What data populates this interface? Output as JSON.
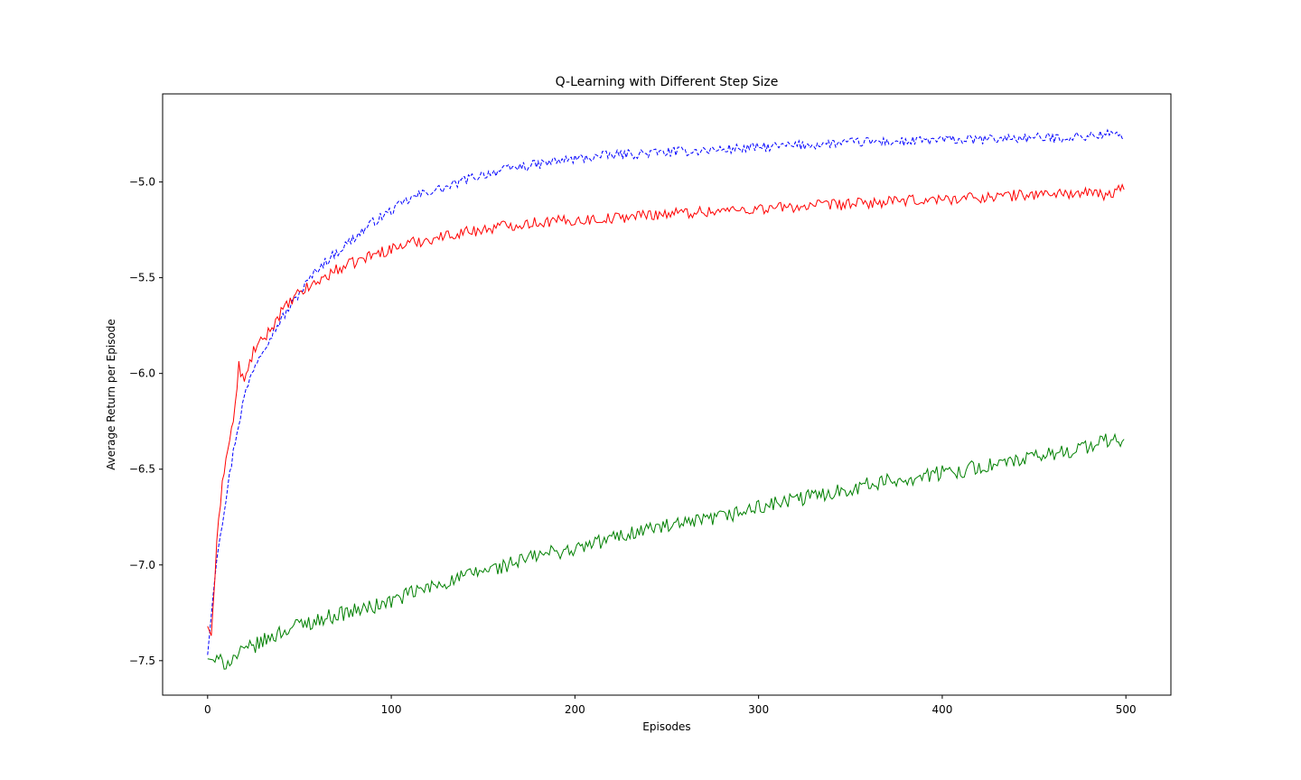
{
  "chart_data": {
    "type": "line",
    "title": "Q-Learning with Different Step Size",
    "xlabel": "Episodes",
    "ylabel": "Average Return per Episode",
    "xlim": [
      -24.5,
      524.5
    ],
    "ylim": [
      -7.68,
      -4.54
    ],
    "xticks": [
      0,
      100,
      200,
      300,
      400,
      500
    ],
    "xtick_labels": [
      "0",
      "100",
      "200",
      "300",
      "400",
      "500"
    ],
    "yticks": [
      -7.5,
      -7.0,
      -6.5,
      -6.0,
      -5.5,
      -5.0
    ],
    "ytick_labels": [
      "−7.5",
      "−7.0",
      "−6.5",
      "−6.0",
      "−5.5",
      "−5.0"
    ],
    "grid": false,
    "legend": "none",
    "series": [
      {
        "color": "#0000ff",
        "dash": "dashed",
        "x": [
          0,
          5,
          10,
          15,
          20,
          25,
          30,
          40,
          50,
          60,
          70,
          80,
          90,
          100,
          110,
          120,
          130,
          140,
          150,
          160,
          170,
          180,
          190,
          200,
          220,
          240,
          260,
          280,
          300,
          320,
          340,
          360,
          380,
          400,
          420,
          440,
          460,
          480,
          490,
          499
        ],
        "y": [
          -7.47,
          -6.95,
          -6.65,
          -6.35,
          -6.12,
          -5.97,
          -5.87,
          -5.72,
          -5.58,
          -5.45,
          -5.37,
          -5.29,
          -5.21,
          -5.15,
          -5.09,
          -5.05,
          -5.03,
          -4.99,
          -4.96,
          -4.94,
          -4.92,
          -4.91,
          -4.89,
          -4.88,
          -4.86,
          -4.85,
          -4.84,
          -4.83,
          -4.82,
          -4.81,
          -4.8,
          -4.79,
          -4.79,
          -4.78,
          -4.78,
          -4.77,
          -4.77,
          -4.76,
          -4.75,
          -4.76
        ]
      },
      {
        "color": "#ff0000",
        "dash": "solid",
        "x": [
          0,
          2,
          5,
          8,
          12,
          15,
          17,
          20,
          25,
          30,
          40,
          50,
          60,
          70,
          80,
          90,
          100,
          110,
          120,
          130,
          140,
          150,
          160,
          170,
          180,
          200,
          220,
          240,
          260,
          280,
          300,
          320,
          340,
          360,
          380,
          400,
          420,
          440,
          460,
          480,
          490,
          499
        ],
        "y": [
          -7.32,
          -7.37,
          -6.9,
          -6.55,
          -6.35,
          -6.18,
          -5.96,
          -6.05,
          -5.88,
          -5.83,
          -5.68,
          -5.58,
          -5.52,
          -5.46,
          -5.42,
          -5.38,
          -5.35,
          -5.32,
          -5.3,
          -5.28,
          -5.26,
          -5.25,
          -5.23,
          -5.22,
          -5.21,
          -5.2,
          -5.19,
          -5.17,
          -5.16,
          -5.15,
          -5.14,
          -5.13,
          -5.12,
          -5.11,
          -5.1,
          -5.09,
          -5.08,
          -5.07,
          -5.06,
          -5.06,
          -5.07,
          -5.03
        ]
      },
      {
        "color": "#008000",
        "dash": "solid",
        "x": [
          0,
          5,
          10,
          20,
          30,
          40,
          50,
          60,
          70,
          80,
          90,
          100,
          110,
          120,
          130,
          140,
          150,
          160,
          170,
          180,
          190,
          200,
          220,
          240,
          260,
          280,
          300,
          320,
          340,
          360,
          380,
          400,
          420,
          440,
          460,
          480,
          490,
          499
        ],
        "y": [
          -7.49,
          -7.5,
          -7.51,
          -7.45,
          -7.4,
          -7.35,
          -7.31,
          -7.29,
          -7.26,
          -7.24,
          -7.22,
          -7.19,
          -7.15,
          -7.12,
          -7.09,
          -7.06,
          -7.03,
          -7.01,
          -6.98,
          -6.95,
          -6.93,
          -6.92,
          -6.86,
          -6.81,
          -6.79,
          -6.75,
          -6.7,
          -6.66,
          -6.62,
          -6.58,
          -6.55,
          -6.52,
          -6.49,
          -6.46,
          -6.42,
          -6.38,
          -6.35,
          -6.35
        ]
      }
    ]
  }
}
